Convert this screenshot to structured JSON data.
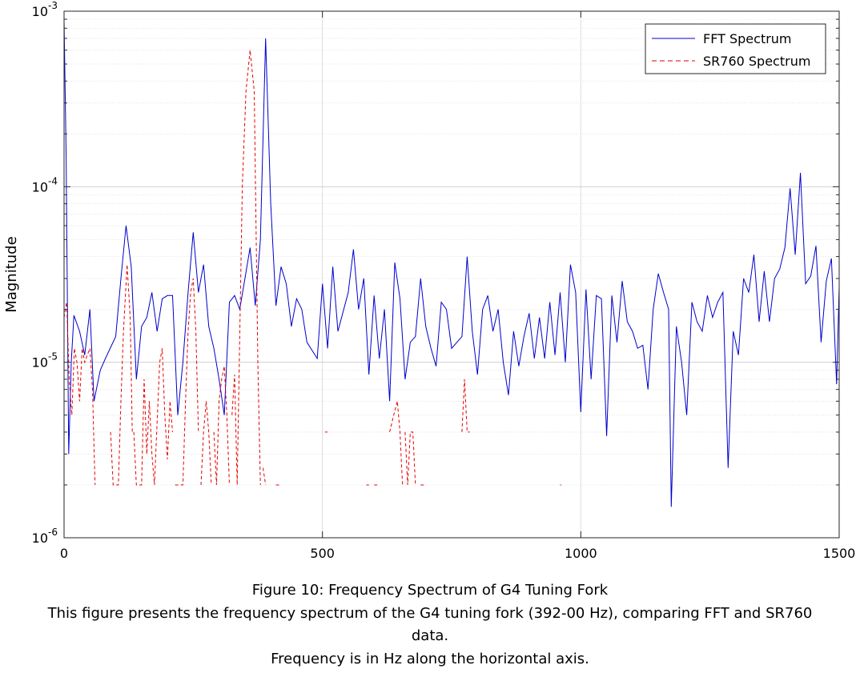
{
  "caption": {
    "title": "Figure 10: Frequency Spectrum of G4 Tuning Fork",
    "description": "This figure presents the frequency spectrum of the G4 tuning fork (392-00 Hz), comparing FFT and SR760 data.",
    "note": "Frequency is in Hz along the horizontal axis."
  },
  "chart_data": {
    "type": "line",
    "title": "",
    "xlabel": "",
    "ylabel": "Magnitude",
    "xlim": [
      0,
      1500
    ],
    "ylim": [
      1e-06,
      0.001
    ],
    "yscale": "log",
    "grid": true,
    "legend_position": "top-right",
    "x_ticks": [
      "0",
      "500",
      "1000",
      "1500"
    ],
    "y_ticks": [
      {
        "base": "10",
        "exp": "-6"
      },
      {
        "base": "10",
        "exp": "-5"
      },
      {
        "base": "10",
        "exp": "-4"
      },
      {
        "base": "10",
        "exp": "-3"
      }
    ],
    "series": [
      {
        "name": "FFT Spectrum",
        "color": "#0000cc",
        "style": "solid",
        "points": [
          [
            0,
            0.0009
          ],
          [
            4,
            0.00015
          ],
          [
            9,
            3e-06
          ],
          [
            14,
            1e-05
          ],
          [
            19,
            1.85e-05
          ],
          [
            30,
            1.5e-05
          ],
          [
            40,
            1.1e-05
          ],
          [
            50,
            2e-05
          ],
          [
            58,
            6e-06
          ],
          [
            70,
            9e-06
          ],
          [
            80,
            1.05e-05
          ],
          [
            100,
            1.4e-05
          ],
          [
            110,
            3e-05
          ],
          [
            120,
            6e-05
          ],
          [
            130,
            3.5e-05
          ],
          [
            140,
            8e-06
          ],
          [
            150,
            1.6e-05
          ],
          [
            160,
            1.8e-05
          ],
          [
            170,
            2.5e-05
          ],
          [
            180,
            1.5e-05
          ],
          [
            190,
            2.3e-05
          ],
          [
            200,
            2.4e-05
          ],
          [
            210,
            2.4e-05
          ],
          [
            220,
            5e-06
          ],
          [
            230,
            1e-05
          ],
          [
            240,
            2.5e-05
          ],
          [
            250,
            5.5e-05
          ],
          [
            260,
            2.5e-05
          ],
          [
            270,
            3.6e-05
          ],
          [
            280,
            1.6e-05
          ],
          [
            290,
            1.2e-05
          ],
          [
            300,
            8e-06
          ],
          [
            310,
            5e-06
          ],
          [
            320,
            2.2e-05
          ],
          [
            330,
            2.4e-05
          ],
          [
            340,
            2e-05
          ],
          [
            350,
            3e-05
          ],
          [
            360,
            4.5e-05
          ],
          [
            370,
            2.1e-05
          ],
          [
            380,
            5e-05
          ],
          [
            390,
            0.0007
          ],
          [
            400,
            8e-05
          ],
          [
            410,
            2.1e-05
          ],
          [
            420,
            3.5e-05
          ],
          [
            430,
            2.8e-05
          ],
          [
            440,
            1.6e-05
          ],
          [
            450,
            2.3e-05
          ],
          [
            460,
            2e-05
          ],
          [
            470,
            1.3e-05
          ],
          [
            490,
            1.05e-05
          ],
          [
            500,
            2.8e-05
          ],
          [
            510,
            1.2e-05
          ],
          [
            520,
            3.5e-05
          ],
          [
            530,
            1.5e-05
          ],
          [
            550,
            2.5e-05
          ],
          [
            560,
            4.4e-05
          ],
          [
            570,
            2e-05
          ],
          [
            580,
            3e-05
          ],
          [
            590,
            8.5e-06
          ],
          [
            600,
            2.4e-05
          ],
          [
            610,
            1.05e-05
          ],
          [
            620,
            2e-05
          ],
          [
            630,
            6e-06
          ],
          [
            640,
            3.7e-05
          ],
          [
            650,
            2.3e-05
          ],
          [
            660,
            8e-06
          ],
          [
            670,
            1.3e-05
          ],
          [
            680,
            1.4e-05
          ],
          [
            690,
            3e-05
          ],
          [
            700,
            1.6e-05
          ],
          [
            710,
            1.2e-05
          ],
          [
            720,
            9.5e-06
          ],
          [
            730,
            2.2e-05
          ],
          [
            740,
            2e-05
          ],
          [
            750,
            1.2e-05
          ],
          [
            770,
            1.4e-05
          ],
          [
            780,
            4e-05
          ],
          [
            790,
            1.5e-05
          ],
          [
            800,
            8.5e-06
          ],
          [
            810,
            2e-05
          ],
          [
            820,
            2.4e-05
          ],
          [
            830,
            1.5e-05
          ],
          [
            840,
            2e-05
          ],
          [
            850,
            1e-05
          ],
          [
            860,
            6.5e-06
          ],
          [
            870,
            1.5e-05
          ],
          [
            880,
            9.5e-06
          ],
          [
            890,
            1.4e-05
          ],
          [
            900,
            1.9e-05
          ],
          [
            910,
            1.05e-05
          ],
          [
            920,
            1.8e-05
          ],
          [
            930,
            1.05e-05
          ],
          [
            940,
            2.2e-05
          ],
          [
            950,
            1.1e-05
          ],
          [
            960,
            2.5e-05
          ],
          [
            970,
            1e-05
          ],
          [
            980,
            3.6e-05
          ],
          [
            990,
            2.5e-05
          ],
          [
            1000,
            5.2e-06
          ],
          [
            1010,
            2.6e-05
          ],
          [
            1020,
            8e-06
          ],
          [
            1030,
            2.4e-05
          ],
          [
            1040,
            2.3e-05
          ],
          [
            1050,
            3.8e-06
          ],
          [
            1060,
            2.4e-05
          ],
          [
            1070,
            1.3e-05
          ],
          [
            1080,
            2.9e-05
          ],
          [
            1090,
            1.7e-05
          ],
          [
            1100,
            1.5e-05
          ],
          [
            1110,
            1.2e-05
          ],
          [
            1120,
            1.25e-05
          ],
          [
            1130,
            7e-06
          ],
          [
            1140,
            2e-05
          ],
          [
            1150,
            3.2e-05
          ],
          [
            1160,
            2.5e-05
          ],
          [
            1170,
            2e-05
          ],
          [
            1175,
            1.5e-06
          ],
          [
            1185,
            1.6e-05
          ],
          [
            1195,
            1e-05
          ],
          [
            1205,
            5e-06
          ],
          [
            1215,
            2.2e-05
          ],
          [
            1225,
            1.7e-05
          ],
          [
            1235,
            1.5e-05
          ],
          [
            1245,
            2.4e-05
          ],
          [
            1255,
            1.8e-05
          ],
          [
            1265,
            2.2e-05
          ],
          [
            1275,
            2.5e-05
          ],
          [
            1285,
            2.5e-06
          ],
          [
            1295,
            1.5e-05
          ],
          [
            1305,
            1.1e-05
          ],
          [
            1315,
            3e-05
          ],
          [
            1325,
            2.5e-05
          ],
          [
            1335,
            4.1e-05
          ],
          [
            1345,
            1.7e-05
          ],
          [
            1355,
            3.3e-05
          ],
          [
            1365,
            1.7e-05
          ],
          [
            1375,
            3e-05
          ],
          [
            1385,
            3.4e-05
          ],
          [
            1395,
            4.5e-05
          ],
          [
            1405,
            9.8e-05
          ],
          [
            1415,
            4.1e-05
          ],
          [
            1425,
            0.00012
          ],
          [
            1435,
            2.8e-05
          ],
          [
            1445,
            3.1e-05
          ],
          [
            1455,
            4.6e-05
          ],
          [
            1465,
            1.3e-05
          ],
          [
            1475,
            2.9e-05
          ],
          [
            1485,
            3.9e-05
          ],
          [
            1495,
            7.5e-06
          ],
          [
            1500,
            2.7e-05
          ]
        ]
      },
      {
        "name": "SR760 Spectrum",
        "color": "#e60000",
        "style": "dashed",
        "segments": [
          [
            [
              0,
              1.8e-05
            ],
            [
              5,
              2.2e-05
            ],
            [
              10,
              8e-06
            ],
            [
              15,
              5e-06
            ],
            [
              20,
              1.2e-05
            ],
            [
              25,
              1e-05
            ],
            [
              30,
              6e-06
            ],
            [
              35,
              1.2e-05
            ],
            [
              40,
              1e-05
            ],
            [
              45,
              1.1e-05
            ],
            [
              50,
              1.2e-05
            ],
            [
              55,
              7e-06
            ],
            [
              60,
              2e-06
            ]
          ],
          [
            [
              90,
              4e-06
            ],
            [
              95,
              2e-06
            ],
            [
              105,
              2e-06
            ],
            [
              110,
              6e-06
            ],
            [
              115,
              1.5e-05
            ],
            [
              122,
              3.6e-05
            ],
            [
              128,
              1.8e-05
            ],
            [
              132,
              4e-06
            ]
          ],
          [
            [
              135,
              4e-06
            ],
            [
              140,
              2e-06
            ],
            [
              150,
              2e-06
            ],
            [
              155,
              8e-06
            ],
            [
              160,
              3e-06
            ],
            [
              165,
              6e-06
            ],
            [
              170,
              3e-06
            ],
            [
              175,
              2e-06
            ],
            [
              185,
              1e-05
            ],
            [
              190,
              1.2e-05
            ],
            [
              195,
              5e-06
            ],
            [
              200,
              2.8e-06
            ],
            [
              205,
              6e-06
            ],
            [
              210,
              4e-06
            ]
          ],
          [
            [
              215,
              2e-06
            ],
            [
              230,
              2e-06
            ],
            [
              235,
              6e-06
            ],
            [
              240,
              1.5e-05
            ],
            [
              245,
              2.5e-05
            ],
            [
              250,
              3e-05
            ],
            [
              255,
              1.5e-05
            ],
            [
              260,
              4e-06
            ]
          ],
          [
            [
              265,
              2e-06
            ],
            [
              270,
              4e-06
            ],
            [
              275,
              6e-06
            ],
            [
              280,
              4e-06
            ],
            [
              285,
              2e-06
            ]
          ],
          [
            [
              290,
              4e-06
            ],
            [
              295,
              2e-06
            ],
            [
              300,
              6e-06
            ],
            [
              305,
              8e-06
            ],
            [
              310,
              9.5e-06
            ],
            [
              315,
              5e-06
            ],
            [
              320,
              2e-06
            ]
          ],
          [
            [
              325,
              5e-06
            ],
            [
              330,
              8.5e-06
            ],
            [
              335,
              2e-06
            ],
            [
              345,
              0.0001
            ],
            [
              352,
              0.00035
            ],
            [
              360,
              0.0006
            ],
            [
              368,
              0.00035
            ],
            [
              375,
              1e-05
            ],
            [
              380,
              2e-06
            ]
          ],
          [
            [
              385,
              2.5e-06
            ],
            [
              390,
              2e-06
            ]
          ],
          [
            [
              410,
              2e-06
            ],
            [
              420,
              2e-06
            ]
          ],
          [
            [
              505,
              4e-06
            ],
            [
              510,
              4e-06
            ]
          ],
          [
            [
              585,
              2e-06
            ],
            [
              590,
              2e-06
            ]
          ],
          [
            [
              600,
              2e-06
            ],
            [
              608,
              2e-06
            ]
          ],
          [
            [
              630,
              4e-06
            ],
            [
              638,
              5e-06
            ],
            [
              645,
              6e-06
            ],
            [
              650,
              4e-06
            ],
            [
              655,
              2e-06
            ]
          ],
          [
            [
              660,
              4e-06
            ],
            [
              665,
              2e-06
            ],
            [
              670,
              4e-06
            ],
            [
              675,
              4e-06
            ],
            [
              680,
              2e-06
            ]
          ],
          [
            [
              690,
              2e-06
            ],
            [
              700,
              2e-06
            ]
          ],
          [
            [
              770,
              4e-06
            ],
            [
              775,
              8e-06
            ],
            [
              780,
              4e-06
            ],
            [
              785,
              4e-06
            ]
          ],
          [
            [
              960,
              2e-06
            ],
            [
              962,
              2e-06
            ]
          ]
        ]
      }
    ]
  }
}
